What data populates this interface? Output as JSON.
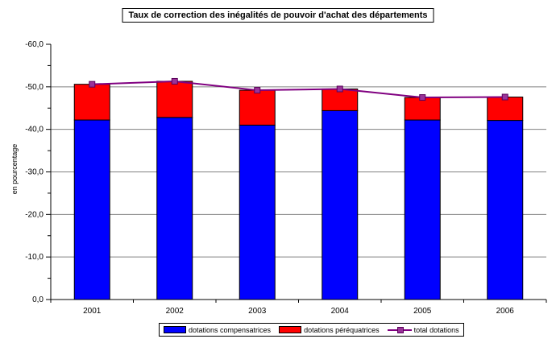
{
  "chart": {
    "title": "Taux de correction des inégalités de pouvoir d'achat des départements",
    "ylabel": "en pourcentage"
  },
  "legend": {
    "items": [
      {
        "label": "dotations compensatrices",
        "color": "#0000ff",
        "swatch": "bar"
      },
      {
        "label": "dotations péréquatrices",
        "color": "#ff0000",
        "swatch": "bar"
      },
      {
        "label": "total dotations",
        "color": "#800080",
        "swatch": "line-square-marker"
      }
    ]
  },
  "chart_data": {
    "type": "bar",
    "subtype": "stacked-bars-with-total-line",
    "title": "Taux de correction des inégalités de pouvoir d'achat des départements",
    "xlabel": "",
    "ylabel": "en pourcentage",
    "categories": [
      "2001",
      "2002",
      "2003",
      "2004",
      "2005",
      "2006"
    ],
    "series": [
      {
        "name": "dotations compensatrices",
        "type": "bar",
        "color": "#0000ff",
        "values": [
          42.2,
          42.8,
          41.0,
          44.4,
          42.2,
          42.1
        ]
      },
      {
        "name": "dotations péréquatrices",
        "type": "bar",
        "color": "#ff0000",
        "values": [
          8.4,
          8.5,
          8.2,
          5.1,
          5.3,
          5.5
        ]
      },
      {
        "name": "total dotations",
        "type": "line",
        "color": "#800080",
        "marker": "square",
        "marker_color": "#993399",
        "values": [
          50.6,
          51.3,
          49.2,
          49.5,
          47.5,
          47.6
        ]
      }
    ],
    "y_axis": {
      "tick_labels_top_to_bottom": [
        "-60,0",
        "-50,0",
        "-40,0",
        "-30,0",
        "-20,0",
        "-10,0",
        "0,0"
      ],
      "range_magnitude": [
        0,
        60
      ],
      "major_step": 10,
      "minor_step": 5
    },
    "grid": "horizontal-major",
    "gridline_color": "#808080",
    "legend_position": "bottom"
  }
}
